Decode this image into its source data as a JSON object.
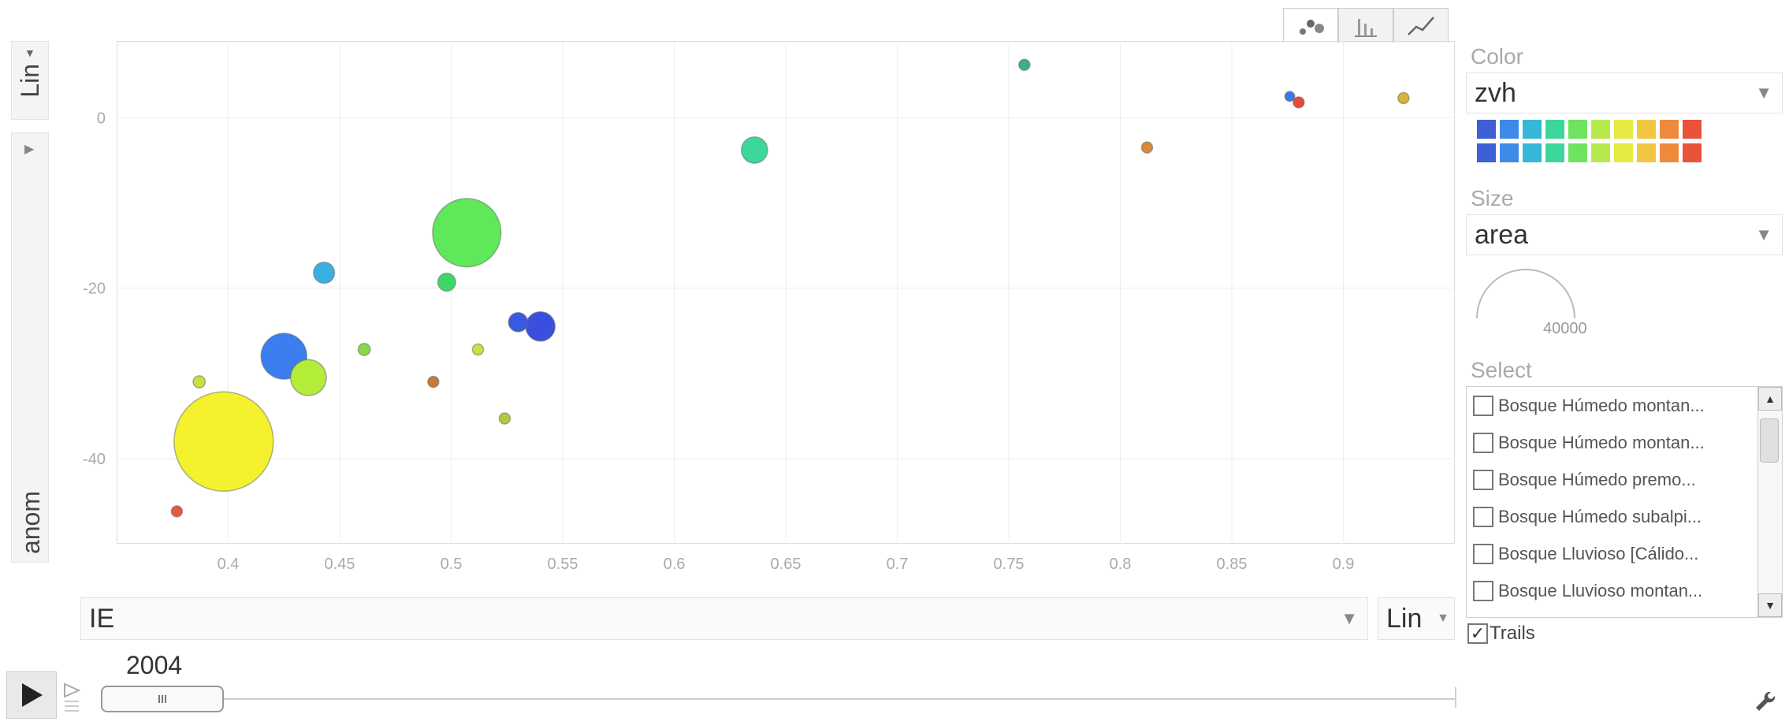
{
  "y_axis": {
    "scale_label": "Lin",
    "variable_label": "anom"
  },
  "x_axis": {
    "variable_label": "IE",
    "scale_label": "Lin"
  },
  "view_tabs": [
    {
      "name": "bubble-chart-tab",
      "icon": "bubble-icon",
      "active": true
    },
    {
      "name": "bar-chart-tab",
      "icon": "bar-chart-icon",
      "active": false
    },
    {
      "name": "line-chart-tab",
      "icon": "line-chart-icon",
      "active": false
    }
  ],
  "color_panel": {
    "label": "Color",
    "selected": "zvh",
    "palette_rows": [
      [
        "#3f5fd6",
        "#3f8ae8",
        "#36b6d8",
        "#3dd69a",
        "#6ee35e",
        "#b6ea4c",
        "#e5ea44",
        "#f2c640",
        "#ee8a3c",
        "#e8533a"
      ],
      [
        "#3f5fd6",
        "#3f8ae8",
        "#36b6d8",
        "#3dd69a",
        "#6ee35e",
        "#b6ea4c",
        "#e5ea44",
        "#f2c640",
        "#ee8a3c",
        "#e8533a"
      ]
    ]
  },
  "size_panel": {
    "label": "Size",
    "selected": "area",
    "legend_value": "40000"
  },
  "select_panel": {
    "label": "Select",
    "items": [
      "Bosque Húmedo montan...",
      "Bosque Húmedo montan...",
      "Bosque Húmedo premo...",
      "Bosque Húmedo subalpi...",
      "Bosque Lluvioso [Cálido...",
      "Bosque Lluvioso montan...",
      "Bosque Lluvioso montan..."
    ]
  },
  "trails": {
    "label": "Trails",
    "checked": true
  },
  "timeline": {
    "year": "2004"
  },
  "chart_data": {
    "type": "scatter",
    "xlabel": "IE",
    "ylabel": "anom",
    "xlim": [
      0.35,
      0.95
    ],
    "ylim": [
      -50,
      9
    ],
    "xticks": [
      "0.4",
      "0.45",
      "0.5",
      "0.55",
      "0.6",
      "0.65",
      "0.7",
      "0.75",
      "0.8",
      "0.85",
      "0.9"
    ],
    "yticks": [
      "0",
      "-20",
      "-40"
    ],
    "grid": true,
    "points": [
      {
        "x": 0.398,
        "y": -38,
        "size": 40000,
        "color": "#f4f22e"
      },
      {
        "x": 0.507,
        "y": -13.5,
        "size": 19000,
        "color": "#5ee85a"
      },
      {
        "x": 0.425,
        "y": -28,
        "size": 8500,
        "color": "#3a7ef0"
      },
      {
        "x": 0.436,
        "y": -30.5,
        "size": 5200,
        "color": "#b4ec3a"
      },
      {
        "x": 0.54,
        "y": -24.5,
        "size": 3500,
        "color": "#3a4fe0"
      },
      {
        "x": 0.636,
        "y": -3.8,
        "size": 2800,
        "color": "#3ad89a"
      },
      {
        "x": 0.443,
        "y": -18.2,
        "size": 1800,
        "color": "#3ab0e0"
      },
      {
        "x": 0.53,
        "y": -24,
        "size": 1500,
        "color": "#3a5ae0"
      },
      {
        "x": 0.498,
        "y": -19.3,
        "size": 1300,
        "color": "#3ed86a"
      },
      {
        "x": 0.461,
        "y": -27.2,
        "size": 600,
        "color": "#88d84a"
      },
      {
        "x": 0.387,
        "y": -31,
        "size": 600,
        "color": "#c8e040"
      },
      {
        "x": 0.512,
        "y": -27.2,
        "size": 500,
        "color": "#c8e040"
      },
      {
        "x": 0.524,
        "y": -35.3,
        "size": 500,
        "color": "#b4c840"
      },
      {
        "x": 0.492,
        "y": -31,
        "size": 500,
        "color": "#c87a3a"
      },
      {
        "x": 0.377,
        "y": -46.2,
        "size": 500,
        "color": "#e85a3a"
      },
      {
        "x": 0.757,
        "y": 6.2,
        "size": 500,
        "color": "#3aaf8a"
      },
      {
        "x": 0.876,
        "y": 2.5,
        "size": 400,
        "color": "#3a7ae0"
      },
      {
        "x": 0.88,
        "y": 1.8,
        "size": 500,
        "color": "#e84a3a"
      },
      {
        "x": 0.812,
        "y": -3.5,
        "size": 500,
        "color": "#d88a3a"
      },
      {
        "x": 0.927,
        "y": 2.3,
        "size": 500,
        "color": "#d8b43a"
      }
    ]
  }
}
